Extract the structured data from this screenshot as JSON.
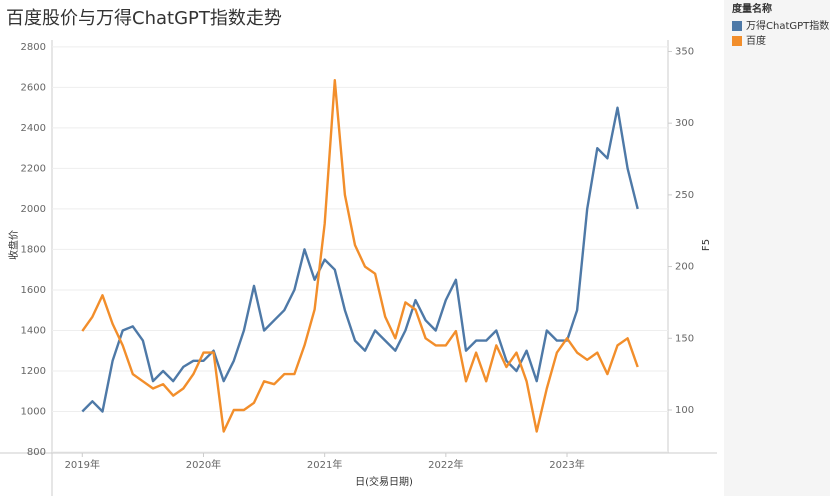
{
  "chart_data": {
    "type": "line",
    "title": "百度股价与万得ChatGPT指数走势",
    "x_label": "日(交易日期)",
    "y_label": "收盘价",
    "y2_label": "F5",
    "legend_title": "度量名称",
    "legend": "right",
    "grid": true,
    "x": [
      "2019-01",
      "2019-02",
      "2019-03",
      "2019-04",
      "2019-05",
      "2019-06",
      "2019-07",
      "2019-08",
      "2019-09",
      "2019-10",
      "2019-11",
      "2019-12",
      "2020-01",
      "2020-02",
      "2020-03",
      "2020-04",
      "2020-05",
      "2020-06",
      "2020-07",
      "2020-08",
      "2020-09",
      "2020-10",
      "2020-11",
      "2020-12",
      "2021-01",
      "2021-02",
      "2021-03",
      "2021-04",
      "2021-05",
      "2021-06",
      "2021-07",
      "2021-08",
      "2021-09",
      "2021-10",
      "2021-11",
      "2021-12",
      "2022-01",
      "2022-02",
      "2022-03",
      "2022-04",
      "2022-05",
      "2022-06",
      "2022-07",
      "2022-08",
      "2022-09",
      "2022-10",
      "2022-11",
      "2022-12",
      "2023-01",
      "2023-02",
      "2023-03",
      "2023-04",
      "2023-05",
      "2023-06",
      "2023-07",
      "2023-08"
    ],
    "xlim": [
      "2018-10",
      "2023-11"
    ],
    "xticks": [
      {
        "value": "2019-01",
        "label": "2019年"
      },
      {
        "value": "2020-01",
        "label": "2020年"
      },
      {
        "value": "2021-01",
        "label": "2021年"
      },
      {
        "value": "2022-01",
        "label": "2022年"
      },
      {
        "value": "2023-01",
        "label": "2023年"
      }
    ],
    "ylim": [
      795,
      2834
    ],
    "yticks": [
      800,
      1000,
      1200,
      1400,
      1600,
      1800,
      2000,
      2200,
      2400,
      2600,
      2800
    ],
    "y2lim": [
      70,
      358
    ],
    "y2ticks": [
      100,
      150,
      200,
      250,
      300,
      350
    ],
    "series": [
      {
        "name": "万得ChatGPT指数",
        "color": "#4e79a7",
        "axis": "y",
        "values": [
          1000,
          1050,
          1000,
          1250,
          1400,
          1420,
          1350,
          1150,
          1200,
          1150,
          1220,
          1250,
          1250,
          1300,
          1150,
          1250,
          1400,
          1620,
          1400,
          1450,
          1500,
          1600,
          1800,
          1650,
          1750,
          1700,
          1500,
          1350,
          1300,
          1400,
          1350,
          1300,
          1400,
          1550,
          1450,
          1400,
          1550,
          1650,
          1300,
          1350,
          1350,
          1400,
          1250,
          1200,
          1300,
          1150,
          1400,
          1350,
          1350,
          1500,
          2000,
          2300,
          2250,
          2500,
          2200,
          2000
        ]
      },
      {
        "name": "百度",
        "color": "#f28e2b",
        "axis": "y2",
        "values": [
          155,
          165,
          180,
          160,
          145,
          125,
          120,
          115,
          118,
          110,
          115,
          125,
          140,
          140,
          85,
          100,
          100,
          105,
          120,
          118,
          125,
          125,
          145,
          170,
          230,
          330,
          250,
          215,
          200,
          195,
          165,
          150,
          175,
          170,
          150,
          145,
          145,
          155,
          120,
          140,
          120,
          145,
          130,
          140,
          120,
          85,
          115,
          140,
          150,
          140,
          135,
          140,
          125,
          145,
          150,
          130
        ]
      }
    ]
  }
}
